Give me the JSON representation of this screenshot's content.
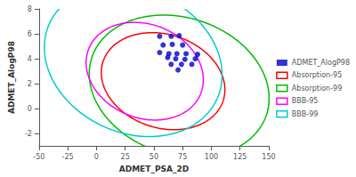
{
  "chart_data": {
    "type": "scatter",
    "xlabel": "ADMET_PSA_2D",
    "ylabel": "ADMET_AlogP98",
    "xlim": [
      -50,
      150
    ],
    "ylim": [
      -3,
      8
    ],
    "xticks": [
      -50,
      -25,
      0,
      25,
      50,
      75,
      100,
      125,
      150
    ],
    "yticks": [
      -2,
      0,
      2,
      4,
      6,
      8
    ],
    "grid": false,
    "legend": "right",
    "series": [
      {
        "name": "ADMET_AlogP98",
        "type": "scatter",
        "color": "#0000cc",
        "values": [
          [
            55,
            5.8
          ],
          [
            65,
            5.8
          ],
          [
            72,
            5.85
          ],
          [
            58,
            5.1
          ],
          [
            66,
            5.15
          ],
          [
            75,
            5.1
          ],
          [
            55,
            4.5
          ],
          [
            63,
            4.4
          ],
          [
            70,
            4.4
          ],
          [
            78,
            4.4
          ],
          [
            88,
            4.35
          ],
          [
            62,
            4.1
          ],
          [
            69,
            4.0
          ],
          [
            77,
            3.95
          ],
          [
            86,
            4.0
          ],
          [
            65,
            3.55
          ],
          [
            74,
            3.55
          ],
          [
            83,
            3.55
          ],
          [
            71,
            3.1
          ]
        ]
      },
      {
        "name": "Absorption-95",
        "type": "ellipse",
        "color": "#ff0000",
        "center_x": 58,
        "center_y": 2.2,
        "width_x": 110,
        "width_y": 7.5,
        "angle_deg": -18
      },
      {
        "name": "Absorption-99",
        "type": "ellipse",
        "color": "#00bb00",
        "center_x": 72,
        "center_y": 1.8,
        "width_x": 160,
        "width_y": 11.0,
        "angle_deg": -18
      },
      {
        "name": "BBB-95",
        "type": "ellipse",
        "color": "#ff00ff",
        "center_x": 42,
        "center_y": 3.0,
        "width_x": 105,
        "width_y": 7.5,
        "angle_deg": -22
      },
      {
        "name": "BBB-99",
        "type": "ellipse",
        "color": "#00cccc",
        "center_x": 32,
        "center_y": 3.8,
        "width_x": 160,
        "width_y": 11.5,
        "angle_deg": -24
      }
    ]
  }
}
